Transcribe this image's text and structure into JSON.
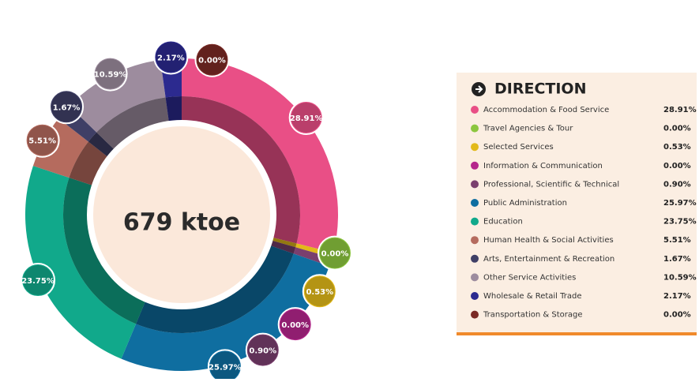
{
  "chart_data": {
    "type": "pie",
    "title": "DIRECTION",
    "center_label": "679 ktoe",
    "categories": [
      "Accommodation & Food Service",
      "Travel Agencies & Tour",
      "Selected Services",
      "Information & Communication",
      "Professional, Scientific & Technical",
      "Public Administration",
      "Education",
      "Human Health & Social Activities",
      "Arts, Entertainment & Recreation",
      "Other Service Activities",
      "Wholesale & Retail Trade",
      "Transportation & Storage"
    ],
    "values": [
      28.91,
      0,
      0.53,
      0,
      0.9,
      25.97,
      23.75,
      5.51,
      1.67,
      10.59,
      2.17,
      0
    ],
    "value_labels": [
      "28.91%",
      "0.00%",
      "0.53%",
      "0.00%",
      "0.90%",
      "25.97%",
      "23.75%",
      "5.51%",
      "1.67%",
      "10.59%",
      "2.17%",
      "0.00%"
    ],
    "colors": [
      "#e94f86",
      "#8cc63f",
      "#e2b91a",
      "#b5268c",
      "#7a3f6e",
      "#0f6ea0",
      "#11a98b",
      "#b56b5e",
      "#3f3f66",
      "#9d8c9e",
      "#2c2a8f",
      "#7b2a25"
    ]
  }
}
